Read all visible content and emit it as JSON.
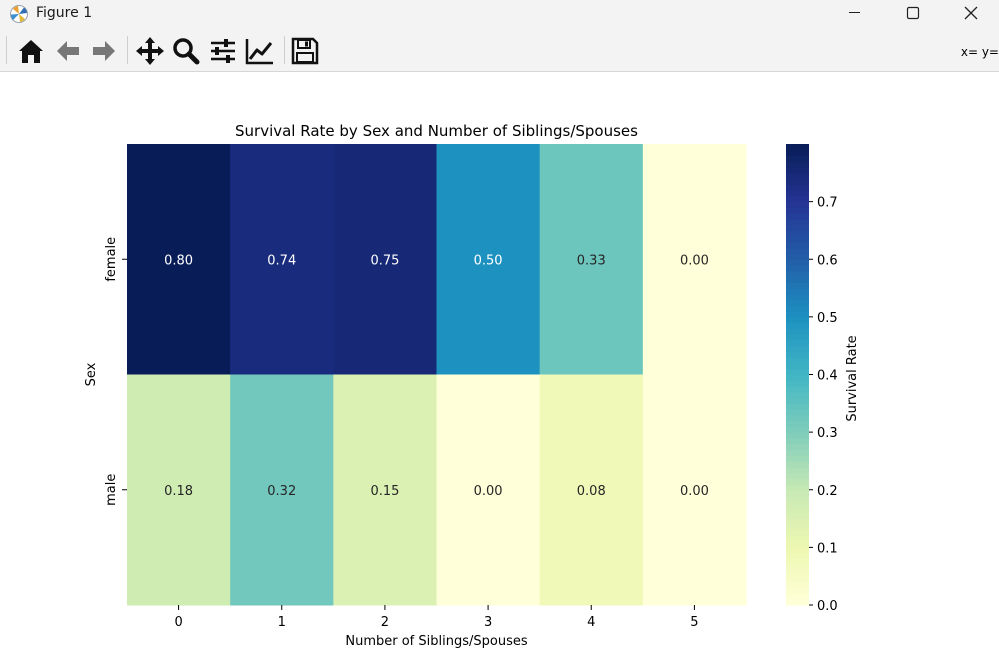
{
  "window": {
    "title": "Figure 1",
    "coords_readout": "x= y="
  },
  "toolbar": {
    "buttons": [
      {
        "name": "home-button",
        "icon": "home-icon"
      },
      {
        "name": "back-button",
        "icon": "arrow-left-icon"
      },
      {
        "name": "forward-button",
        "icon": "arrow-right-icon"
      },
      {
        "name": "pan-button",
        "icon": "move-icon"
      },
      {
        "name": "zoom-button",
        "icon": "zoom-icon"
      },
      {
        "name": "subplots-button",
        "icon": "sliders-icon"
      },
      {
        "name": "axes-edit-button",
        "icon": "line-chart-icon"
      },
      {
        "name": "save-button",
        "icon": "save-icon"
      }
    ]
  },
  "chart_data": {
    "type": "heatmap",
    "title": "Survival Rate by Sex and Number of Siblings/Spouses",
    "xlabel": "Number of Siblings/Spouses",
    "ylabel": "Sex",
    "x_categories": [
      "0",
      "1",
      "2",
      "3",
      "4",
      "5"
    ],
    "y_categories": [
      "female",
      "male"
    ],
    "values": [
      [
        0.8,
        0.74,
        0.75,
        0.5,
        0.33,
        0.0
      ],
      [
        0.18,
        0.32,
        0.15,
        0.0,
        0.08,
        0.0
      ]
    ],
    "annotations": [
      [
        "0.80",
        "0.74",
        "0.75",
        "0.50",
        "0.33",
        "0.00"
      ],
      [
        "0.18",
        "0.32",
        "0.15",
        "0.00",
        "0.08",
        "0.00"
      ]
    ],
    "colormap": "YlGnBu",
    "colorbar": {
      "label": "Survival Rate",
      "range": [
        0.0,
        0.8
      ],
      "ticks": [
        0.0,
        0.1,
        0.2,
        0.3,
        0.4,
        0.5,
        0.6,
        0.7
      ],
      "tick_labels": [
        "0.0",
        "0.1",
        "0.2",
        "0.3",
        "0.4",
        "0.5",
        "0.6",
        "0.7"
      ]
    }
  }
}
